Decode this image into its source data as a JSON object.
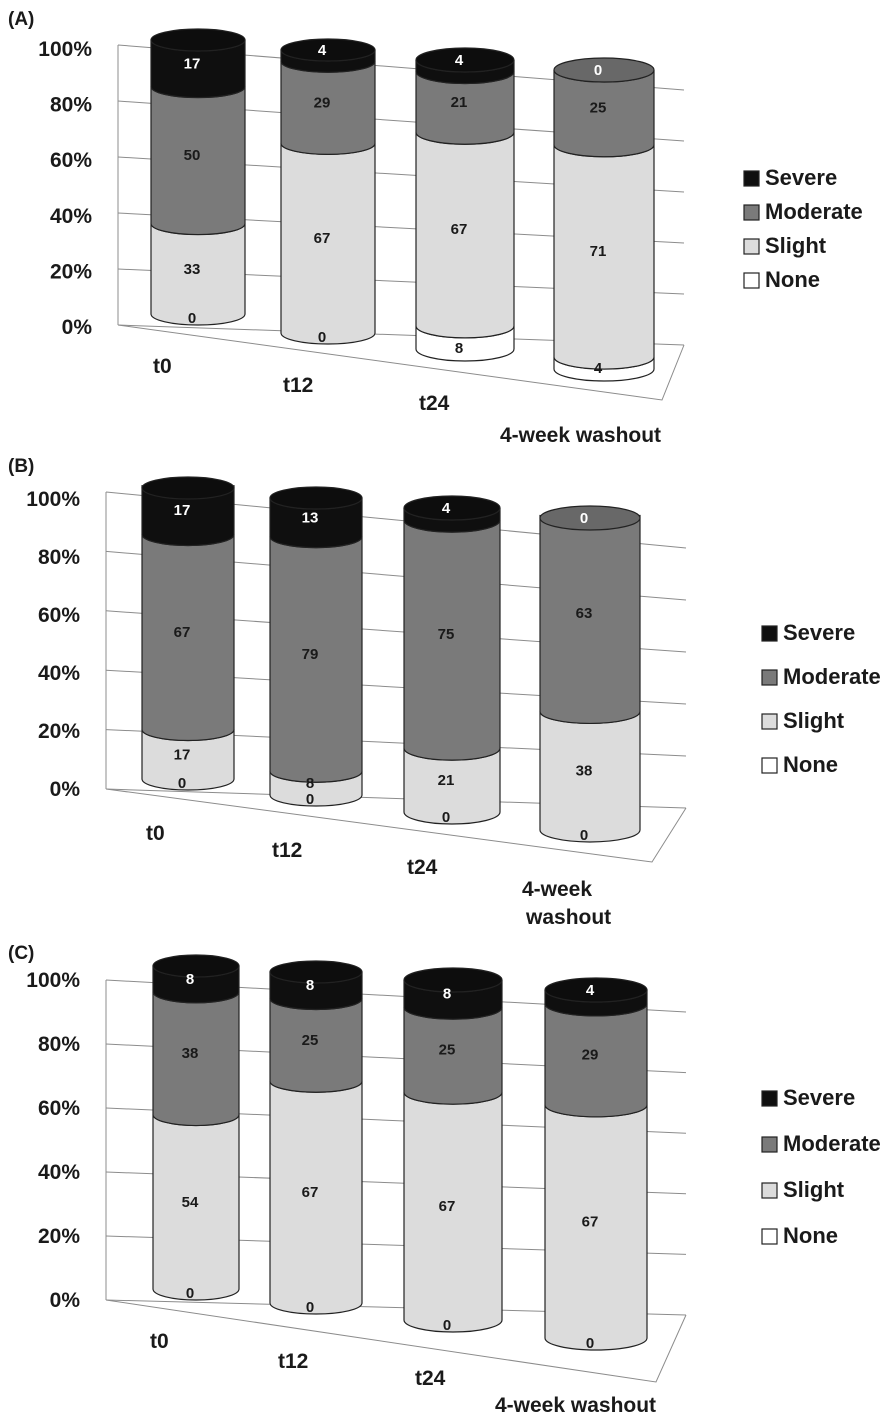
{
  "colors": {
    "Severe": "#0f0f0f",
    "Moderate": "#7a7a7a",
    "Slight": "#dcdcdc",
    "None": "#ffffff",
    "grid": "#8c8c8c",
    "text": "#1a1a1a"
  },
  "chart_data": [
    {
      "type": "bar",
      "panel_label": "(A)",
      "categories": [
        "t0",
        "t12",
        "t24",
        "4-week washout"
      ],
      "yticks": [
        "0%",
        "20%",
        "40%",
        "60%",
        "80%",
        "100%"
      ],
      "ylim": [
        0,
        100
      ],
      "stacked": true,
      "legend": [
        "Severe",
        "Moderate",
        "Slight",
        "None"
      ],
      "legend_position": "right",
      "series": [
        {
          "name": "None",
          "values": [
            0,
            0,
            8,
            4
          ]
        },
        {
          "name": "Slight",
          "values": [
            33,
            67,
            67,
            71
          ]
        },
        {
          "name": "Moderate",
          "values": [
            50,
            29,
            21,
            25
          ]
        },
        {
          "name": "Severe",
          "values": [
            17,
            4,
            4,
            0
          ]
        }
      ]
    },
    {
      "type": "bar",
      "panel_label": "(B)",
      "categories": [
        "t0",
        "t12",
        "t24",
        "4-week washout"
      ],
      "yticks": [
        "0%",
        "20%",
        "40%",
        "60%",
        "80%",
        "100%"
      ],
      "ylim": [
        0,
        100
      ],
      "stacked": true,
      "legend": [
        "Severe",
        "Moderate",
        "Slight",
        "None"
      ],
      "legend_position": "right",
      "series": [
        {
          "name": "None",
          "values": [
            0,
            0,
            0,
            0
          ]
        },
        {
          "name": "Slight",
          "values": [
            17,
            8,
            21,
            38
          ]
        },
        {
          "name": "Moderate",
          "values": [
            67,
            79,
            75,
            63
          ]
        },
        {
          "name": "Severe",
          "values": [
            17,
            13,
            4,
            0
          ]
        }
      ]
    },
    {
      "type": "bar",
      "panel_label": "(C)",
      "categories": [
        "t0",
        "t12",
        "t24",
        "4-week washout"
      ],
      "yticks": [
        "0%",
        "20%",
        "40%",
        "60%",
        "80%",
        "100%"
      ],
      "ylim": [
        0,
        100
      ],
      "stacked": true,
      "legend": [
        "Severe",
        "Moderate",
        "Slight",
        "None"
      ],
      "legend_position": "right",
      "series": [
        {
          "name": "None",
          "values": [
            0,
            0,
            0,
            0
          ]
        },
        {
          "name": "Slight",
          "values": [
            54,
            67,
            67,
            67
          ]
        },
        {
          "name": "Moderate",
          "values": [
            38,
            25,
            25,
            29
          ]
        },
        {
          "name": "Severe",
          "values": [
            8,
            8,
            8,
            4
          ]
        }
      ]
    }
  ]
}
